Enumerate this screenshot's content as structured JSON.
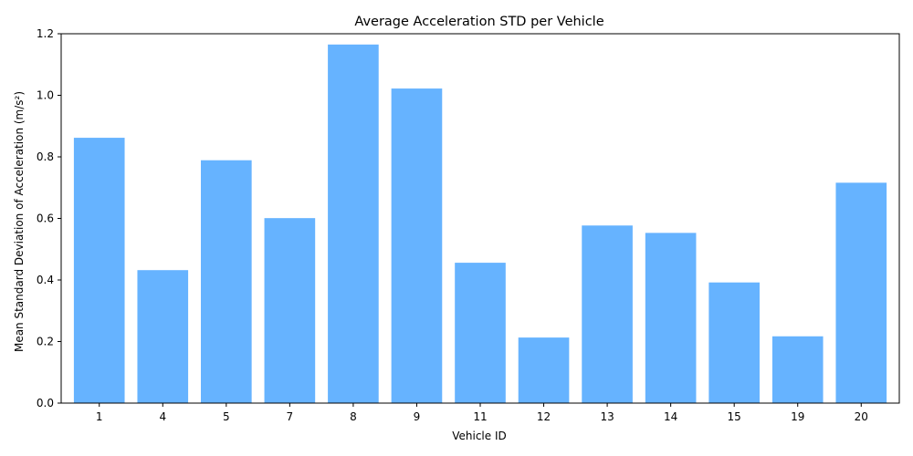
{
  "chart_data": {
    "type": "bar",
    "title": "Average Acceleration STD per Vehicle",
    "xlabel": "Vehicle ID",
    "ylabel": "Mean Standard Deviation of Acceleration (m/s²)",
    "categories": [
      "1",
      "4",
      "5",
      "7",
      "8",
      "9",
      "11",
      "12",
      "13",
      "14",
      "15",
      "19",
      "20"
    ],
    "values": [
      0.862,
      0.432,
      0.789,
      0.601,
      1.165,
      1.022,
      0.456,
      0.213,
      0.577,
      0.553,
      0.392,
      0.217,
      0.716
    ],
    "ylim": [
      0,
      1.2
    ],
    "yticks": [
      "0.0",
      "0.2",
      "0.4",
      "0.6",
      "0.8",
      "1.0",
      "1.2"
    ],
    "grid": false,
    "bar_color": "#66b3ff"
  }
}
